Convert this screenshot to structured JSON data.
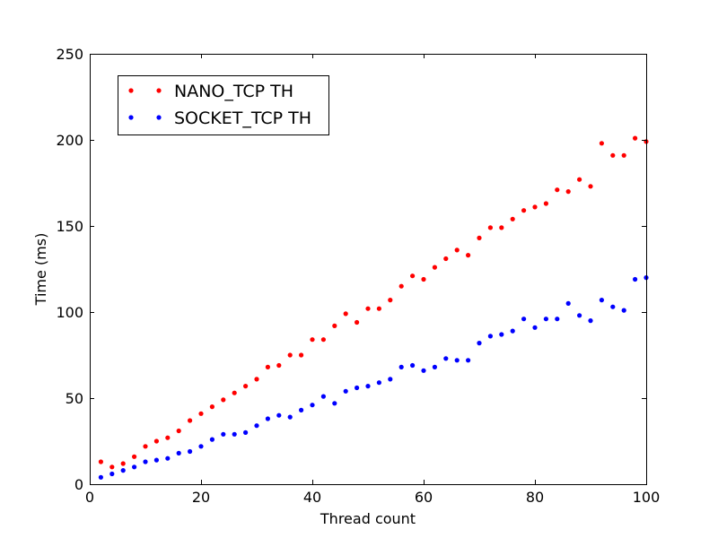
{
  "chart_data": {
    "type": "scatter",
    "title": "",
    "xlabel": "Thread count",
    "ylabel": "Time (ms)",
    "xlim": [
      0,
      100
    ],
    "ylim": [
      0,
      250
    ],
    "xticks": [
      0,
      20,
      40,
      60,
      80,
      100
    ],
    "yticks": [
      0,
      50,
      100,
      150,
      200,
      250
    ],
    "grid": false,
    "legend_position": "top-left",
    "x": [
      2,
      4,
      6,
      8,
      10,
      12,
      14,
      16,
      18,
      20,
      22,
      24,
      26,
      28,
      30,
      32,
      34,
      36,
      38,
      40,
      42,
      44,
      46,
      48,
      50,
      52,
      54,
      56,
      58,
      60,
      62,
      64,
      66,
      68,
      70,
      72,
      74,
      76,
      78,
      80,
      82,
      84,
      86,
      88,
      90,
      92,
      94,
      96,
      98,
      100
    ],
    "series": [
      {
        "name": "NANO_TCP TH",
        "color": "#ff0000",
        "values": [
          13,
          10,
          12,
          16,
          22,
          25,
          27,
          31,
          37,
          41,
          45,
          49,
          53,
          57,
          61,
          68,
          69,
          75,
          75,
          84,
          84,
          92,
          99,
          94,
          102,
          102,
          107,
          115,
          121,
          119,
          126,
          131,
          136,
          133,
          143,
          149,
          149,
          154,
          159,
          161,
          163,
          171,
          170,
          177,
          173,
          198,
          191,
          191,
          201,
          199
        ]
      },
      {
        "name": "SOCKET_TCP TH",
        "color": "#0000ff",
        "values": [
          4,
          6,
          8,
          10,
          13,
          14,
          15,
          18,
          19,
          22,
          26,
          29,
          29,
          30,
          34,
          38,
          40,
          39,
          43,
          46,
          51,
          47,
          54,
          56,
          57,
          59,
          61,
          68,
          69,
          66,
          68,
          73,
          72,
          72,
          82,
          86,
          87,
          89,
          96,
          91,
          96,
          96,
          105,
          98,
          95,
          107,
          103,
          101,
          119,
          120
        ]
      }
    ]
  }
}
